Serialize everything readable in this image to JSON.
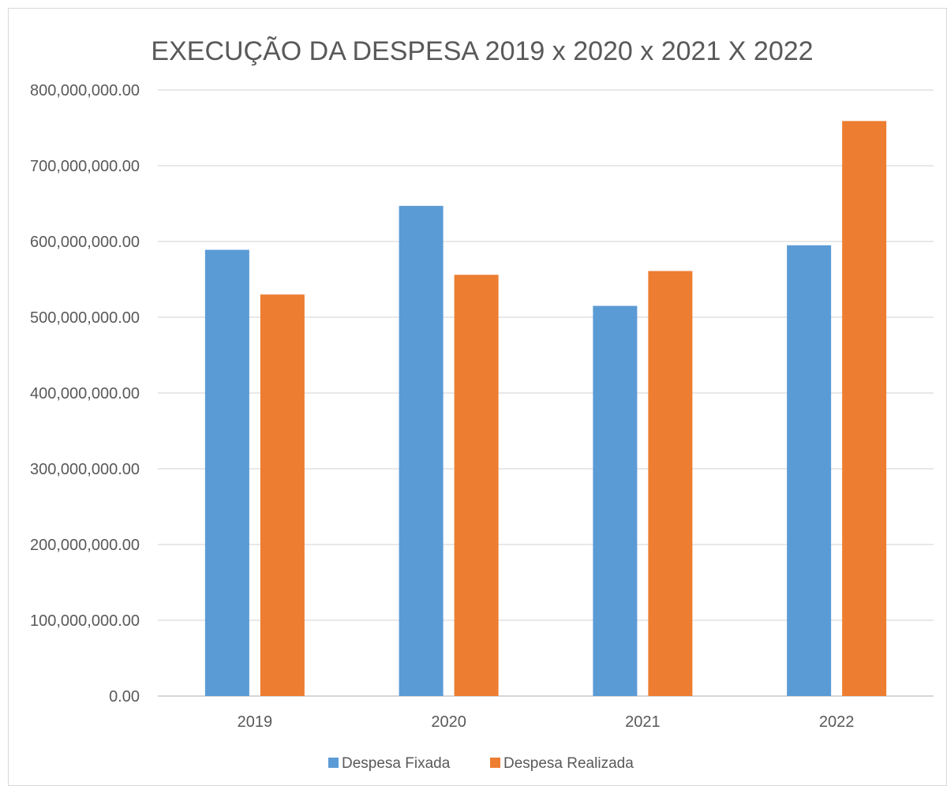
{
  "chart_data": {
    "type": "bar",
    "title": "EXECUÇÃO DA DESPESA 2019 x 2020 x 2021 X 2022",
    "xlabel": "",
    "ylabel": "",
    "categories": [
      "2019",
      "2020",
      "2021",
      "2022"
    ],
    "series": [
      {
        "name": "Despesa Fixada",
        "color": "#5B9BD5",
        "values": [
          589000000,
          647000000,
          515000000,
          595000000
        ]
      },
      {
        "name": "Despesa Realizada",
        "color": "#ED7D31",
        "values": [
          530000000,
          556000000,
          561000000,
          759000000
        ]
      }
    ],
    "ylim": [
      0,
      800000000
    ],
    "yticks": [
      "0.00",
      "100,000,000.00",
      "200,000,000.00",
      "300,000,000.00",
      "400,000,000.00",
      "500,000,000.00",
      "600,000,000.00",
      "700,000,000.00",
      "800,000,000.00"
    ],
    "grid": true,
    "legend_position": "bottom"
  }
}
